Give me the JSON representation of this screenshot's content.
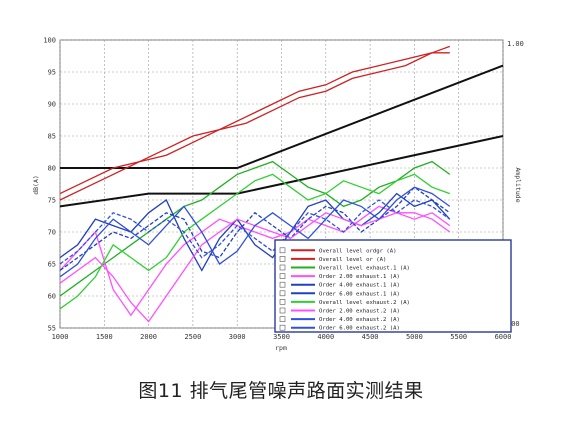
{
  "caption": "图11 排气尾管噪声路面实测结果",
  "chart_data": {
    "type": "line",
    "xlabel": "rpm",
    "ylabel": "dB(A)",
    "y2label": "Amplitude",
    "xlim": [
      1000,
      6000
    ],
    "ylim": [
      55,
      100
    ],
    "x_ticks": [
      "1000",
      "1500",
      "2000",
      "2500",
      "3000",
      "3500",
      "4000",
      "4500",
      "5000",
      "5500",
      "6000"
    ],
    "y_ticks": [
      "55",
      "60",
      "65",
      "70",
      "75",
      "80",
      "85",
      "90",
      "95",
      "100"
    ],
    "y2_ticks": [
      "1.00",
      "100"
    ],
    "grid": true,
    "legend_placement": "bottom-right",
    "series": [
      {
        "name": "Overall level ordgr (A)",
        "color": "#d02020",
        "x": [
          1000,
          1300,
          1600,
          1900,
          2200,
          2500,
          2800,
          3100,
          3400,
          3700,
          4000,
          4300,
          4600,
          4900,
          5200,
          5400
        ],
        "y": [
          76,
          78,
          80,
          81,
          82,
          84,
          86,
          88,
          90,
          92,
          93,
          95,
          96,
          97,
          98,
          99
        ]
      },
      {
        "name": "Overall level or (A)",
        "color": "#d02020",
        "x": [
          1000,
          1300,
          1600,
          1900,
          2200,
          2500,
          2800,
          3100,
          3400,
          3700,
          4000,
          4300,
          4600,
          4900,
          5200,
          5400
        ],
        "y": [
          75,
          77,
          79,
          81,
          83,
          85,
          86,
          87,
          89,
          91,
          92,
          94,
          95,
          96,
          98,
          98
        ]
      },
      {
        "name": "Overall level exhaust.1 (A)",
        "color": "#20b020",
        "x": [
          1000,
          1200,
          1400,
          1600,
          1800,
          2000,
          2200,
          2400,
          2600,
          2800,
          3000,
          3200,
          3400,
          3600,
          3800,
          4000,
          4200,
          4400,
          4600,
          4800,
          5000,
          5200,
          5400
        ],
        "y": [
          60,
          62,
          64,
          66,
          68,
          70,
          72,
          74,
          75,
          77,
          79,
          80,
          81,
          79,
          77,
          76,
          74,
          75,
          77,
          78,
          80,
          81,
          79
        ]
      },
      {
        "name": "Order 2.00 exhaust.1 (A)",
        "color": "#ff50ff",
        "x": [
          1000,
          1200,
          1400,
          1600,
          1800,
          2000,
          2200,
          2400,
          2600,
          2800,
          3000,
          3200,
          3400,
          3600,
          3800,
          4000,
          4200,
          4400,
          4600,
          4800,
          5000,
          5200,
          5400
        ],
        "y": [
          64,
          67,
          70,
          61,
          57,
          61,
          65,
          68,
          70,
          72,
          71,
          70,
          69,
          70,
          72,
          71,
          70,
          72,
          74,
          73,
          72,
          73,
          71
        ]
      },
      {
        "name": "Order 4.00 exhaust.1 (A)",
        "color": "#2040c0",
        "x": [
          1000,
          1200,
          1400,
          1600,
          1800,
          2000,
          2200,
          2400,
          2600,
          2800,
          3000,
          3200,
          3400,
          3600,
          3800,
          4000,
          4200,
          4400,
          4600,
          4800,
          5000,
          5200,
          5400
        ],
        "y": [
          66,
          68,
          72,
          71,
          70,
          73,
          75,
          69,
          64,
          69,
          72,
          68,
          66,
          70,
          74,
          75,
          72,
          71,
          73,
          76,
          74,
          75,
          72
        ]
      },
      {
        "name": "Order 6.00 exhaust.1 (A)",
        "color": "#2040c0",
        "x": [
          1000,
          1200,
          1400,
          1600,
          1800,
          2000,
          2200,
          2400,
          2600,
          2800,
          3000,
          3200,
          3400,
          3600,
          3800,
          4000,
          4200,
          4400,
          4600,
          4800,
          5000,
          5200,
          5400
        ],
        "y": [
          64,
          66,
          68,
          70,
          69,
          71,
          73,
          72,
          67,
          66,
          70,
          73,
          71,
          69,
          72,
          74,
          73,
          70,
          72,
          74,
          77,
          75,
          73
        ]
      },
      {
        "name": "Overall level exhaust.2 (A)",
        "color": "#30d030",
        "x": [
          1000,
          1200,
          1400,
          1600,
          1800,
          2000,
          2200,
          2400,
          2600,
          2800,
          3000,
          3200,
          3400,
          3600,
          3800,
          4000,
          4200,
          4400,
          4600,
          4800,
          5000,
          5200,
          5400
        ],
        "y": [
          58,
          60,
          63,
          68,
          66,
          64,
          66,
          70,
          72,
          74,
          76,
          78,
          79,
          77,
          75,
          76,
          78,
          77,
          76,
          78,
          79,
          77,
          76
        ]
      },
      {
        "name": "Order 2.00 exhaust.2 (A)",
        "color": "#ff50ff",
        "x": [
          1000,
          1200,
          1400,
          1600,
          1800,
          2000,
          2200,
          2400,
          2600,
          2800,
          3000,
          3200,
          3400,
          3600,
          3800,
          4000,
          4200,
          4400,
          4600,
          4800,
          5000,
          5200,
          5400
        ],
        "y": [
          62,
          64,
          66,
          63,
          59,
          56,
          60,
          64,
          68,
          70,
          72,
          71,
          70,
          69,
          71,
          73,
          72,
          71,
          72,
          73,
          73,
          72,
          70
        ]
      },
      {
        "name": "Order 4.00 exhaust.2 (A)",
        "color": "#3050e0",
        "x": [
          1000,
          1200,
          1400,
          1600,
          1800,
          2000,
          2200,
          2400,
          2600,
          2800,
          3000,
          3200,
          3400,
          3600,
          3800,
          4000,
          4200,
          4400,
          4600,
          4800,
          5000,
          5200,
          5400
        ],
        "y": [
          63,
          65,
          69,
          72,
          70,
          68,
          71,
          74,
          70,
          65,
          67,
          71,
          73,
          71,
          69,
          72,
          75,
          74,
          72,
          75,
          77,
          76,
          74
        ]
      },
      {
        "name": "Order 6.00 exhaust.2 (A)",
        "color": "#3050e0",
        "x": [
          1000,
          1200,
          1400,
          1600,
          1800,
          2000,
          2200,
          2400,
          2600,
          2800,
          3000,
          3200,
          3400,
          3600,
          3800,
          4000,
          4200,
          4400,
          4600,
          4800,
          5000,
          5200,
          5400
        ],
        "y": [
          65,
          67,
          70,
          73,
          72,
          70,
          72,
          70,
          66,
          68,
          71,
          69,
          67,
          70,
          73,
          72,
          70,
          73,
          75,
          73,
          75,
          74,
          72
        ]
      }
    ],
    "reference_lines": [
      {
        "color": "#111111",
        "points": [
          [
            1000,
            80
          ],
          [
            3000,
            80
          ],
          [
            6000,
            96
          ]
        ]
      },
      {
        "color": "#111111",
        "points": [
          [
            1000,
            74
          ],
          [
            2000,
            76
          ],
          [
            3000,
            76
          ],
          [
            6000,
            85
          ]
        ]
      }
    ],
    "legend_entries": [
      "Overall level ordgr (A)",
      "Overall level or (A)",
      "Overall level exhaust.1 (A)",
      "Order 2.00 exhaust.1 (A)",
      "Order 4.00 exhaust.1 (A)",
      "Order 6.00 exhaust.1 (A)",
      "Overall level exhaust.2 (A)",
      "Order 2.00 exhaust.2 (A)",
      "Order 4.00 exhaust.2 (A)",
      "Order 6.00 exhaust.2 (A)"
    ]
  }
}
